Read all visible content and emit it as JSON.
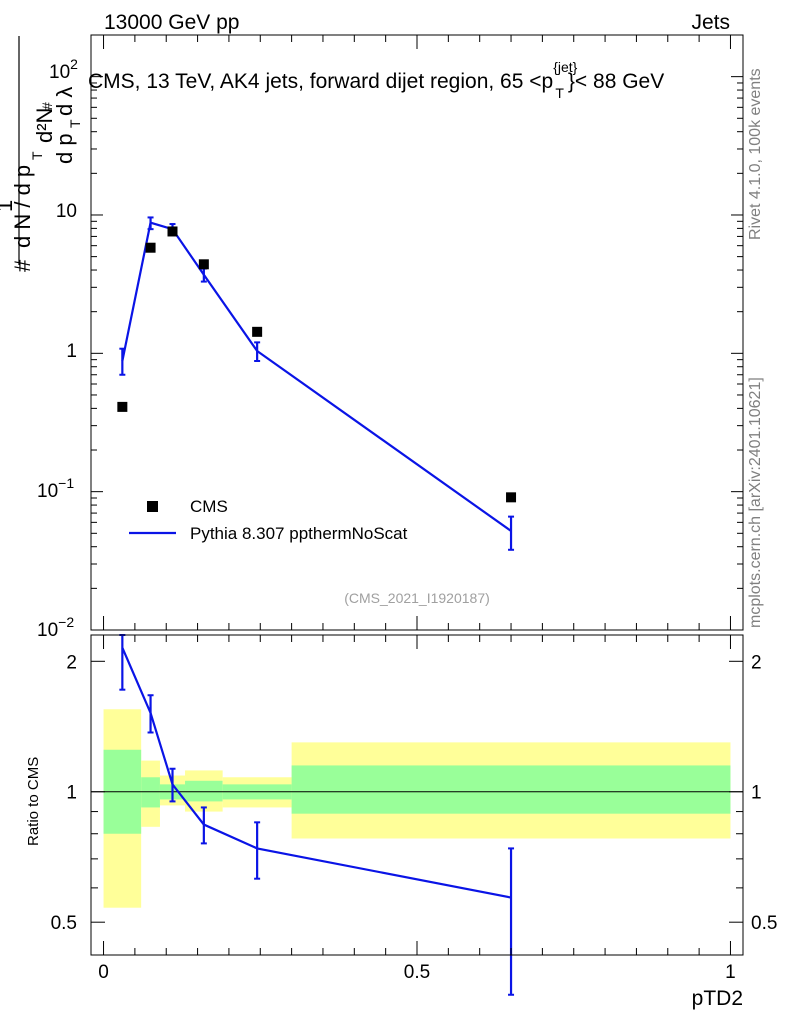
{
  "header": {
    "left": "13000 GeV pp",
    "right": "Jets"
  },
  "side_labels": {
    "rivet": "Rivet 4.1.0,  100k events",
    "mcplots": "mcplots.cern.ch [arXiv:2401.10621]"
  },
  "colors": {
    "mc": "#0a14e6",
    "band_outer": "#ffff99",
    "band_inner": "#99ff99",
    "data": "#000000"
  },
  "chart_data": [
    {
      "type": "scatter",
      "title": "CMS, 13 TeV, AK4 jets, forward dijet region, 65 < pT(jet) < 88 GeV",
      "title_parts": {
        "main": "CMS, 13 TeV, AK4 jets, forward dijet region, 65 <p",
        "sup": "{jet}",
        "sub": "T",
        "end": "}< 88 GeV"
      },
      "ylabel": "1/(dN/dpT) d²N/(dpT dλ)",
      "yscale": "log",
      "ylim": [
        0.01,
        200
      ],
      "xlim": [
        -0.02,
        1.02
      ],
      "ytick_labels": {
        "e2": "10",
        "e1": "10",
        "e0": "1",
        "em1": "10",
        "em2": "10",
        "s2": "2",
        "sm1": "−1",
        "sm2": "−2"
      },
      "watermark": "(CMS_2021_I1920187)",
      "legend": {
        "data": "CMS",
        "mc": "Pythia 8.307 ppthermNoScat",
        "position": "lower-left"
      },
      "series": [
        {
          "name": "CMS",
          "x": [
            0.03,
            0.075,
            0.11,
            0.16,
            0.245,
            0.65
          ],
          "y": [
            0.41,
            5.8,
            7.6,
            4.4,
            1.43,
            0.091
          ]
        },
        {
          "name": "Pythia 8.307 ppthermNoScat",
          "x": [
            0.03,
            0.075,
            0.11,
            0.16,
            0.245,
            0.65
          ],
          "y": [
            0.88,
            8.8,
            7.9,
            3.7,
            1.04,
            0.052
          ],
          "err_lo": [
            0.7,
            7.9,
            7.2,
            3.3,
            0.88,
            0.038
          ],
          "err_hi": [
            1.08,
            9.6,
            8.6,
            4.1,
            1.2,
            0.066
          ]
        }
      ]
    },
    {
      "type": "line",
      "ylabel": "Ratio to CMS",
      "xlabel": "pTD2",
      "ylim": [
        0.42,
        2.3
      ],
      "xlim": [
        -0.02,
        1.02
      ],
      "yticks": [
        0.5,
        1,
        2
      ],
      "ytick_labels": [
        "0.5",
        "1",
        "2"
      ],
      "xticks": [
        0,
        0.5,
        1
      ],
      "xtick_labels": [
        "0",
        "0.5",
        "1"
      ],
      "bands": [
        {
          "x0": 0.0,
          "x1": 0.06,
          "outer": [
            0.54,
            1.55
          ],
          "inner": [
            0.8,
            1.25
          ]
        },
        {
          "x0": 0.06,
          "x1": 0.09,
          "outer": [
            0.83,
            1.18
          ],
          "inner": [
            0.92,
            1.08
          ]
        },
        {
          "x0": 0.09,
          "x1": 0.13,
          "outer": [
            0.93,
            1.09
          ],
          "inner": [
            0.96,
            1.04
          ]
        },
        {
          "x0": 0.13,
          "x1": 0.19,
          "outer": [
            0.9,
            1.12
          ],
          "inner": [
            0.95,
            1.06
          ]
        },
        {
          "x0": 0.19,
          "x1": 0.3,
          "outer": [
            0.92,
            1.08
          ],
          "inner": [
            0.96,
            1.04
          ]
        },
        {
          "x0": 0.3,
          "x1": 1.0,
          "outer": [
            0.78,
            1.3
          ],
          "inner": [
            0.89,
            1.15
          ]
        }
      ],
      "series": [
        {
          "name": "Pythia 8.307 ppthermNoScat",
          "x": [
            0.03,
            0.075,
            0.11,
            0.16,
            0.245,
            0.65
          ],
          "y": [
            2.15,
            1.52,
            1.04,
            0.84,
            0.74,
            0.57
          ],
          "err_lo": [
            1.72,
            1.37,
            0.95,
            0.76,
            0.63,
            0.34
          ],
          "err_hi": [
            2.3,
            1.67,
            1.13,
            0.92,
            0.85,
            0.74
          ]
        }
      ]
    }
  ]
}
